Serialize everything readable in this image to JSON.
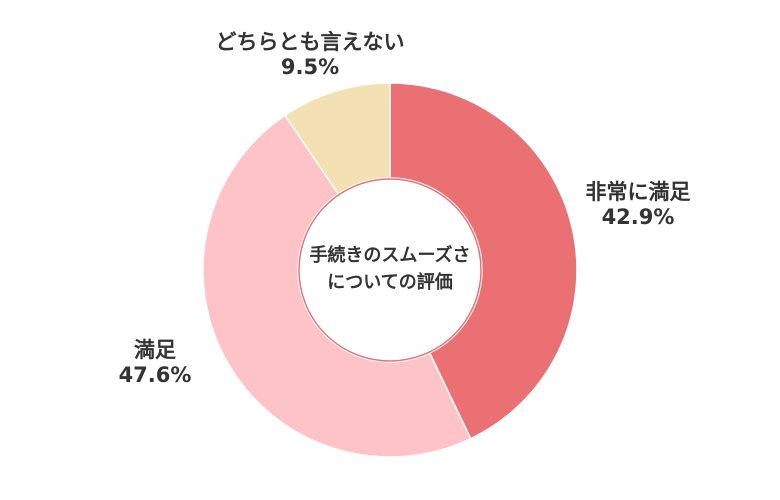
{
  "chart_data": {
    "type": "pie",
    "variant": "donut",
    "center_title_lines": [
      "手続きのスムーズさ",
      "についての評価"
    ],
    "categories": [
      "非常に満足",
      "満足",
      "どちらとも言えない"
    ],
    "values": [
      42.9,
      47.6,
      9.5
    ],
    "value_labels": [
      "42.9%",
      "47.6%",
      "9.5%"
    ],
    "colors": [
      "#ea7073",
      "#fdc3c6",
      "#f4e1b3"
    ],
    "start_angle_deg": 0,
    "direction": "clockwise",
    "legend": "none"
  }
}
